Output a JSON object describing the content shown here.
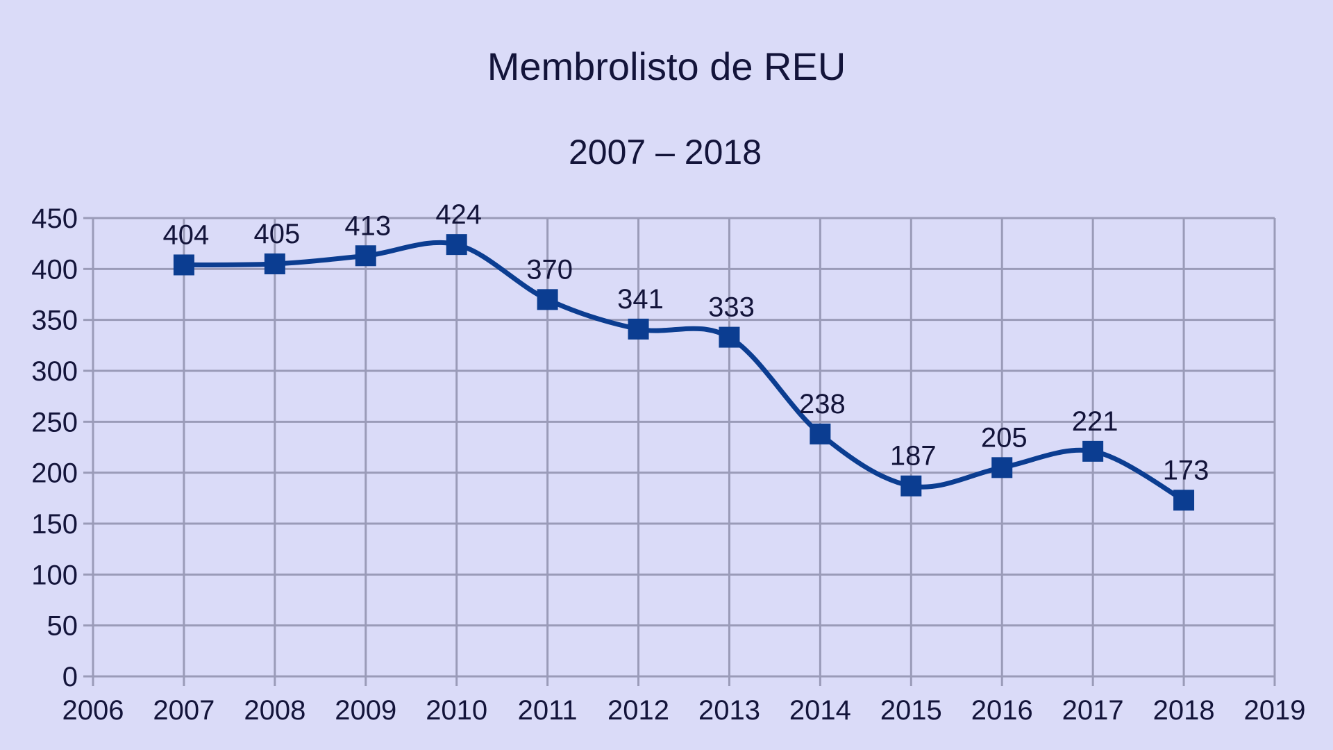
{
  "chart_data": {
    "type": "line",
    "title": "Membrolisto de REU",
    "subtitle": "2007 – 2018",
    "xlabel": "",
    "ylabel": "",
    "xlim": [
      2006,
      2019
    ],
    "ylim": [
      0,
      450
    ],
    "x_ticks": [
      2006,
      2007,
      2008,
      2009,
      2010,
      2011,
      2012,
      2013,
      2014,
      2015,
      2016,
      2017,
      2018,
      2019
    ],
    "y_ticks": [
      0,
      50,
      100,
      150,
      200,
      250,
      300,
      350,
      400,
      450
    ],
    "grid": true,
    "legend": "none",
    "smooth": true,
    "marker": "square",
    "series": [
      {
        "color": "#0b3d91",
        "x": [
          2007,
          2008,
          2009,
          2010,
          2011,
          2012,
          2013,
          2014,
          2015,
          2016,
          2017,
          2018
        ],
        "values": [
          404,
          405,
          413,
          424,
          370,
          341,
          333,
          238,
          187,
          205,
          221,
          173
        ]
      }
    ]
  }
}
